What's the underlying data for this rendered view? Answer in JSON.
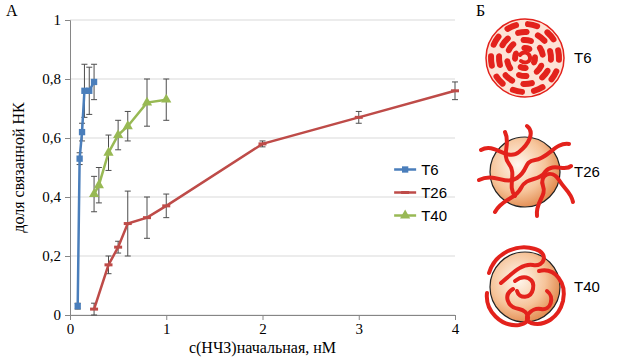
{
  "chart_data": {
    "type": "line",
    "panel": "А",
    "x_label": "c(НЧЗ)начальная, нМ",
    "y_label": "доля связанной НК",
    "xlim": [
      0,
      4
    ],
    "ylim": [
      0,
      1
    ],
    "xticks": [
      0,
      1,
      2,
      3,
      4
    ],
    "yticks": [
      0,
      {
        "value": 0.2,
        "label": "0,2"
      },
      {
        "value": 0.4,
        "label": "0,4"
      },
      {
        "value": 0.6,
        "label": "0,6"
      },
      {
        "value": 0.8,
        "label": "0,8"
      },
      1
    ],
    "grid": true,
    "legend": "right",
    "series": [
      {
        "name": "T6",
        "color": "#4a7ebb",
        "marker": "square",
        "x": [
          0.08,
          0.1,
          0.125,
          0.15,
          0.2,
          0.25
        ],
        "values": [
          0.03,
          0.53,
          0.62,
          0.76,
          0.76,
          0.79
        ],
        "errors": [
          0.01,
          0.02,
          0.03,
          0.09,
          0.08,
          0.06
        ]
      },
      {
        "name": "T26",
        "color": "#be4b48",
        "marker": "dash",
        "x": [
          0.25,
          0.4,
          0.5,
          0.6,
          0.8,
          1,
          2,
          3,
          4
        ],
        "values": [
          0.02,
          0.17,
          0.23,
          0.31,
          0.33,
          0.37,
          0.58,
          0.67,
          0.76
        ],
        "errors": [
          0.02,
          0.03,
          0.02,
          0.11,
          0.07,
          0.04,
          0.01,
          0.02,
          0.03
        ]
      },
      {
        "name": "T40",
        "color": "#98b954",
        "marker": "triangle",
        "x": [
          0.25,
          0.3,
          0.4,
          0.5,
          0.6,
          0.8,
          1
        ],
        "values": [
          0.41,
          0.44,
          0.55,
          0.61,
          0.64,
          0.72,
          0.73
        ],
        "errors": [
          0.06,
          0.06,
          0.06,
          0.05,
          0.05,
          0.08,
          0.07
        ]
      }
    ]
  },
  "panel_b": {
    "letter": "Б",
    "labels": [
      "T6",
      "T26",
      "T40"
    ]
  }
}
